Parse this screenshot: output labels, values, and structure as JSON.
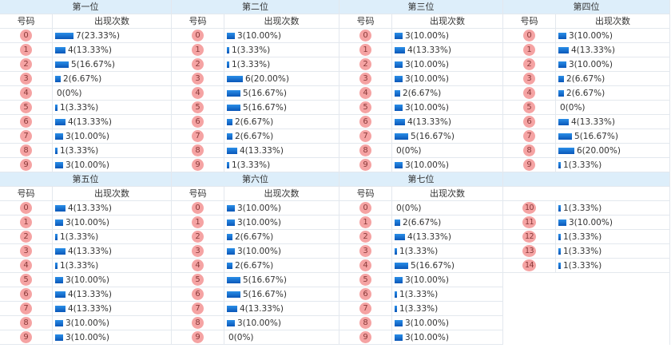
{
  "labels": {
    "number_col": "号码",
    "count_col": "出现次数"
  },
  "colors": {
    "header_bg": "#ddeefa",
    "ball_bg": "#f5a3a3",
    "bar": "#0a6fd6",
    "border": "#e3e8ee"
  },
  "blocks": [
    {
      "title": "第一位",
      "rows": [
        {
          "n": "0",
          "c": 7,
          "text": "7(23.33%)"
        },
        {
          "n": "1",
          "c": 4,
          "text": "4(13.33%)"
        },
        {
          "n": "2",
          "c": 5,
          "text": "5(16.67%)"
        },
        {
          "n": "3",
          "c": 2,
          "text": "2(6.67%)"
        },
        {
          "n": "4",
          "c": 0,
          "text": "0(0%)"
        },
        {
          "n": "5",
          "c": 1,
          "text": "1(3.33%)"
        },
        {
          "n": "6",
          "c": 4,
          "text": "4(13.33%)"
        },
        {
          "n": "7",
          "c": 3,
          "text": "3(10.00%)"
        },
        {
          "n": "8",
          "c": 1,
          "text": "1(3.33%)"
        },
        {
          "n": "9",
          "c": 3,
          "text": "3(10.00%)"
        }
      ]
    },
    {
      "title": "第二位",
      "rows": [
        {
          "n": "0",
          "c": 3,
          "text": "3(10.00%)"
        },
        {
          "n": "1",
          "c": 1,
          "text": "1(3.33%)"
        },
        {
          "n": "2",
          "c": 1,
          "text": "1(3.33%)"
        },
        {
          "n": "3",
          "c": 6,
          "text": "6(20.00%)"
        },
        {
          "n": "4",
          "c": 5,
          "text": "5(16.67%)"
        },
        {
          "n": "5",
          "c": 5,
          "text": "5(16.67%)"
        },
        {
          "n": "6",
          "c": 2,
          "text": "2(6.67%)"
        },
        {
          "n": "7",
          "c": 2,
          "text": "2(6.67%)"
        },
        {
          "n": "8",
          "c": 4,
          "text": "4(13.33%)"
        },
        {
          "n": "9",
          "c": 1,
          "text": "1(3.33%)"
        }
      ]
    },
    {
      "title": "第三位",
      "rows": [
        {
          "n": "0",
          "c": 3,
          "text": "3(10.00%)"
        },
        {
          "n": "1",
          "c": 4,
          "text": "4(13.33%)"
        },
        {
          "n": "2",
          "c": 3,
          "text": "3(10.00%)"
        },
        {
          "n": "3",
          "c": 3,
          "text": "3(10.00%)"
        },
        {
          "n": "4",
          "c": 2,
          "text": "2(6.67%)"
        },
        {
          "n": "5",
          "c": 3,
          "text": "3(10.00%)"
        },
        {
          "n": "6",
          "c": 4,
          "text": "4(13.33%)"
        },
        {
          "n": "7",
          "c": 5,
          "text": "5(16.67%)"
        },
        {
          "n": "8",
          "c": 0,
          "text": "0(0%)"
        },
        {
          "n": "9",
          "c": 3,
          "text": "3(10.00%)"
        }
      ]
    },
    {
      "title": "第四位",
      "rows": [
        {
          "n": "0",
          "c": 3,
          "text": "3(10.00%)"
        },
        {
          "n": "1",
          "c": 4,
          "text": "4(13.33%)"
        },
        {
          "n": "2",
          "c": 3,
          "text": "3(10.00%)"
        },
        {
          "n": "3",
          "c": 2,
          "text": "2(6.67%)"
        },
        {
          "n": "4",
          "c": 2,
          "text": "2(6.67%)"
        },
        {
          "n": "5",
          "c": 0,
          "text": "0(0%)"
        },
        {
          "n": "6",
          "c": 4,
          "text": "4(13.33%)"
        },
        {
          "n": "7",
          "c": 5,
          "text": "5(16.67%)"
        },
        {
          "n": "8",
          "c": 6,
          "text": "6(20.00%)"
        },
        {
          "n": "9",
          "c": 1,
          "text": "1(3.33%)"
        }
      ]
    },
    {
      "title": "第五位",
      "rows": [
        {
          "n": "0",
          "c": 4,
          "text": "4(13.33%)"
        },
        {
          "n": "1",
          "c": 3,
          "text": "3(10.00%)"
        },
        {
          "n": "2",
          "c": 1,
          "text": "1(3.33%)"
        },
        {
          "n": "3",
          "c": 4,
          "text": "4(13.33%)"
        },
        {
          "n": "4",
          "c": 1,
          "text": "1(3.33%)"
        },
        {
          "n": "5",
          "c": 3,
          "text": "3(10.00%)"
        },
        {
          "n": "6",
          "c": 4,
          "text": "4(13.33%)"
        },
        {
          "n": "7",
          "c": 4,
          "text": "4(13.33%)"
        },
        {
          "n": "8",
          "c": 3,
          "text": "3(10.00%)"
        },
        {
          "n": "9",
          "c": 3,
          "text": "3(10.00%)"
        }
      ]
    },
    {
      "title": "第六位",
      "rows": [
        {
          "n": "0",
          "c": 3,
          "text": "3(10.00%)"
        },
        {
          "n": "1",
          "c": 3,
          "text": "3(10.00%)"
        },
        {
          "n": "2",
          "c": 2,
          "text": "2(6.67%)"
        },
        {
          "n": "3",
          "c": 3,
          "text": "3(10.00%)"
        },
        {
          "n": "4",
          "c": 2,
          "text": "2(6.67%)"
        },
        {
          "n": "5",
          "c": 5,
          "text": "5(16.67%)"
        },
        {
          "n": "6",
          "c": 5,
          "text": "5(16.67%)"
        },
        {
          "n": "7",
          "c": 4,
          "text": "4(13.33%)"
        },
        {
          "n": "8",
          "c": 3,
          "text": "3(10.00%)"
        },
        {
          "n": "9",
          "c": 0,
          "text": "0(0%)"
        }
      ]
    },
    {
      "title": "第七位",
      "rows": [
        {
          "n": "0",
          "c": 0,
          "text": "0(0%)"
        },
        {
          "n": "1",
          "c": 2,
          "text": "2(6.67%)"
        },
        {
          "n": "2",
          "c": 4,
          "text": "4(13.33%)"
        },
        {
          "n": "3",
          "c": 1,
          "text": "1(3.33%)"
        },
        {
          "n": "4",
          "c": 5,
          "text": "5(16.67%)"
        },
        {
          "n": "5",
          "c": 3,
          "text": "3(10.00%)"
        },
        {
          "n": "6",
          "c": 1,
          "text": "1(3.33%)"
        },
        {
          "n": "7",
          "c": 1,
          "text": "1(3.33%)"
        },
        {
          "n": "8",
          "c": 3,
          "text": "3(10.00%)"
        },
        {
          "n": "9",
          "c": 3,
          "text": "3(10.00%)"
        }
      ]
    },
    {
      "title": "",
      "rows": [
        {
          "n": "10",
          "c": 1,
          "text": "1(3.33%)"
        },
        {
          "n": "11",
          "c": 3,
          "text": "3(10.00%)"
        },
        {
          "n": "12",
          "c": 1,
          "text": "1(3.33%)"
        },
        {
          "n": "13",
          "c": 1,
          "text": "1(3.33%)"
        },
        {
          "n": "14",
          "c": 1,
          "text": "1(3.33%)"
        }
      ]
    }
  ]
}
